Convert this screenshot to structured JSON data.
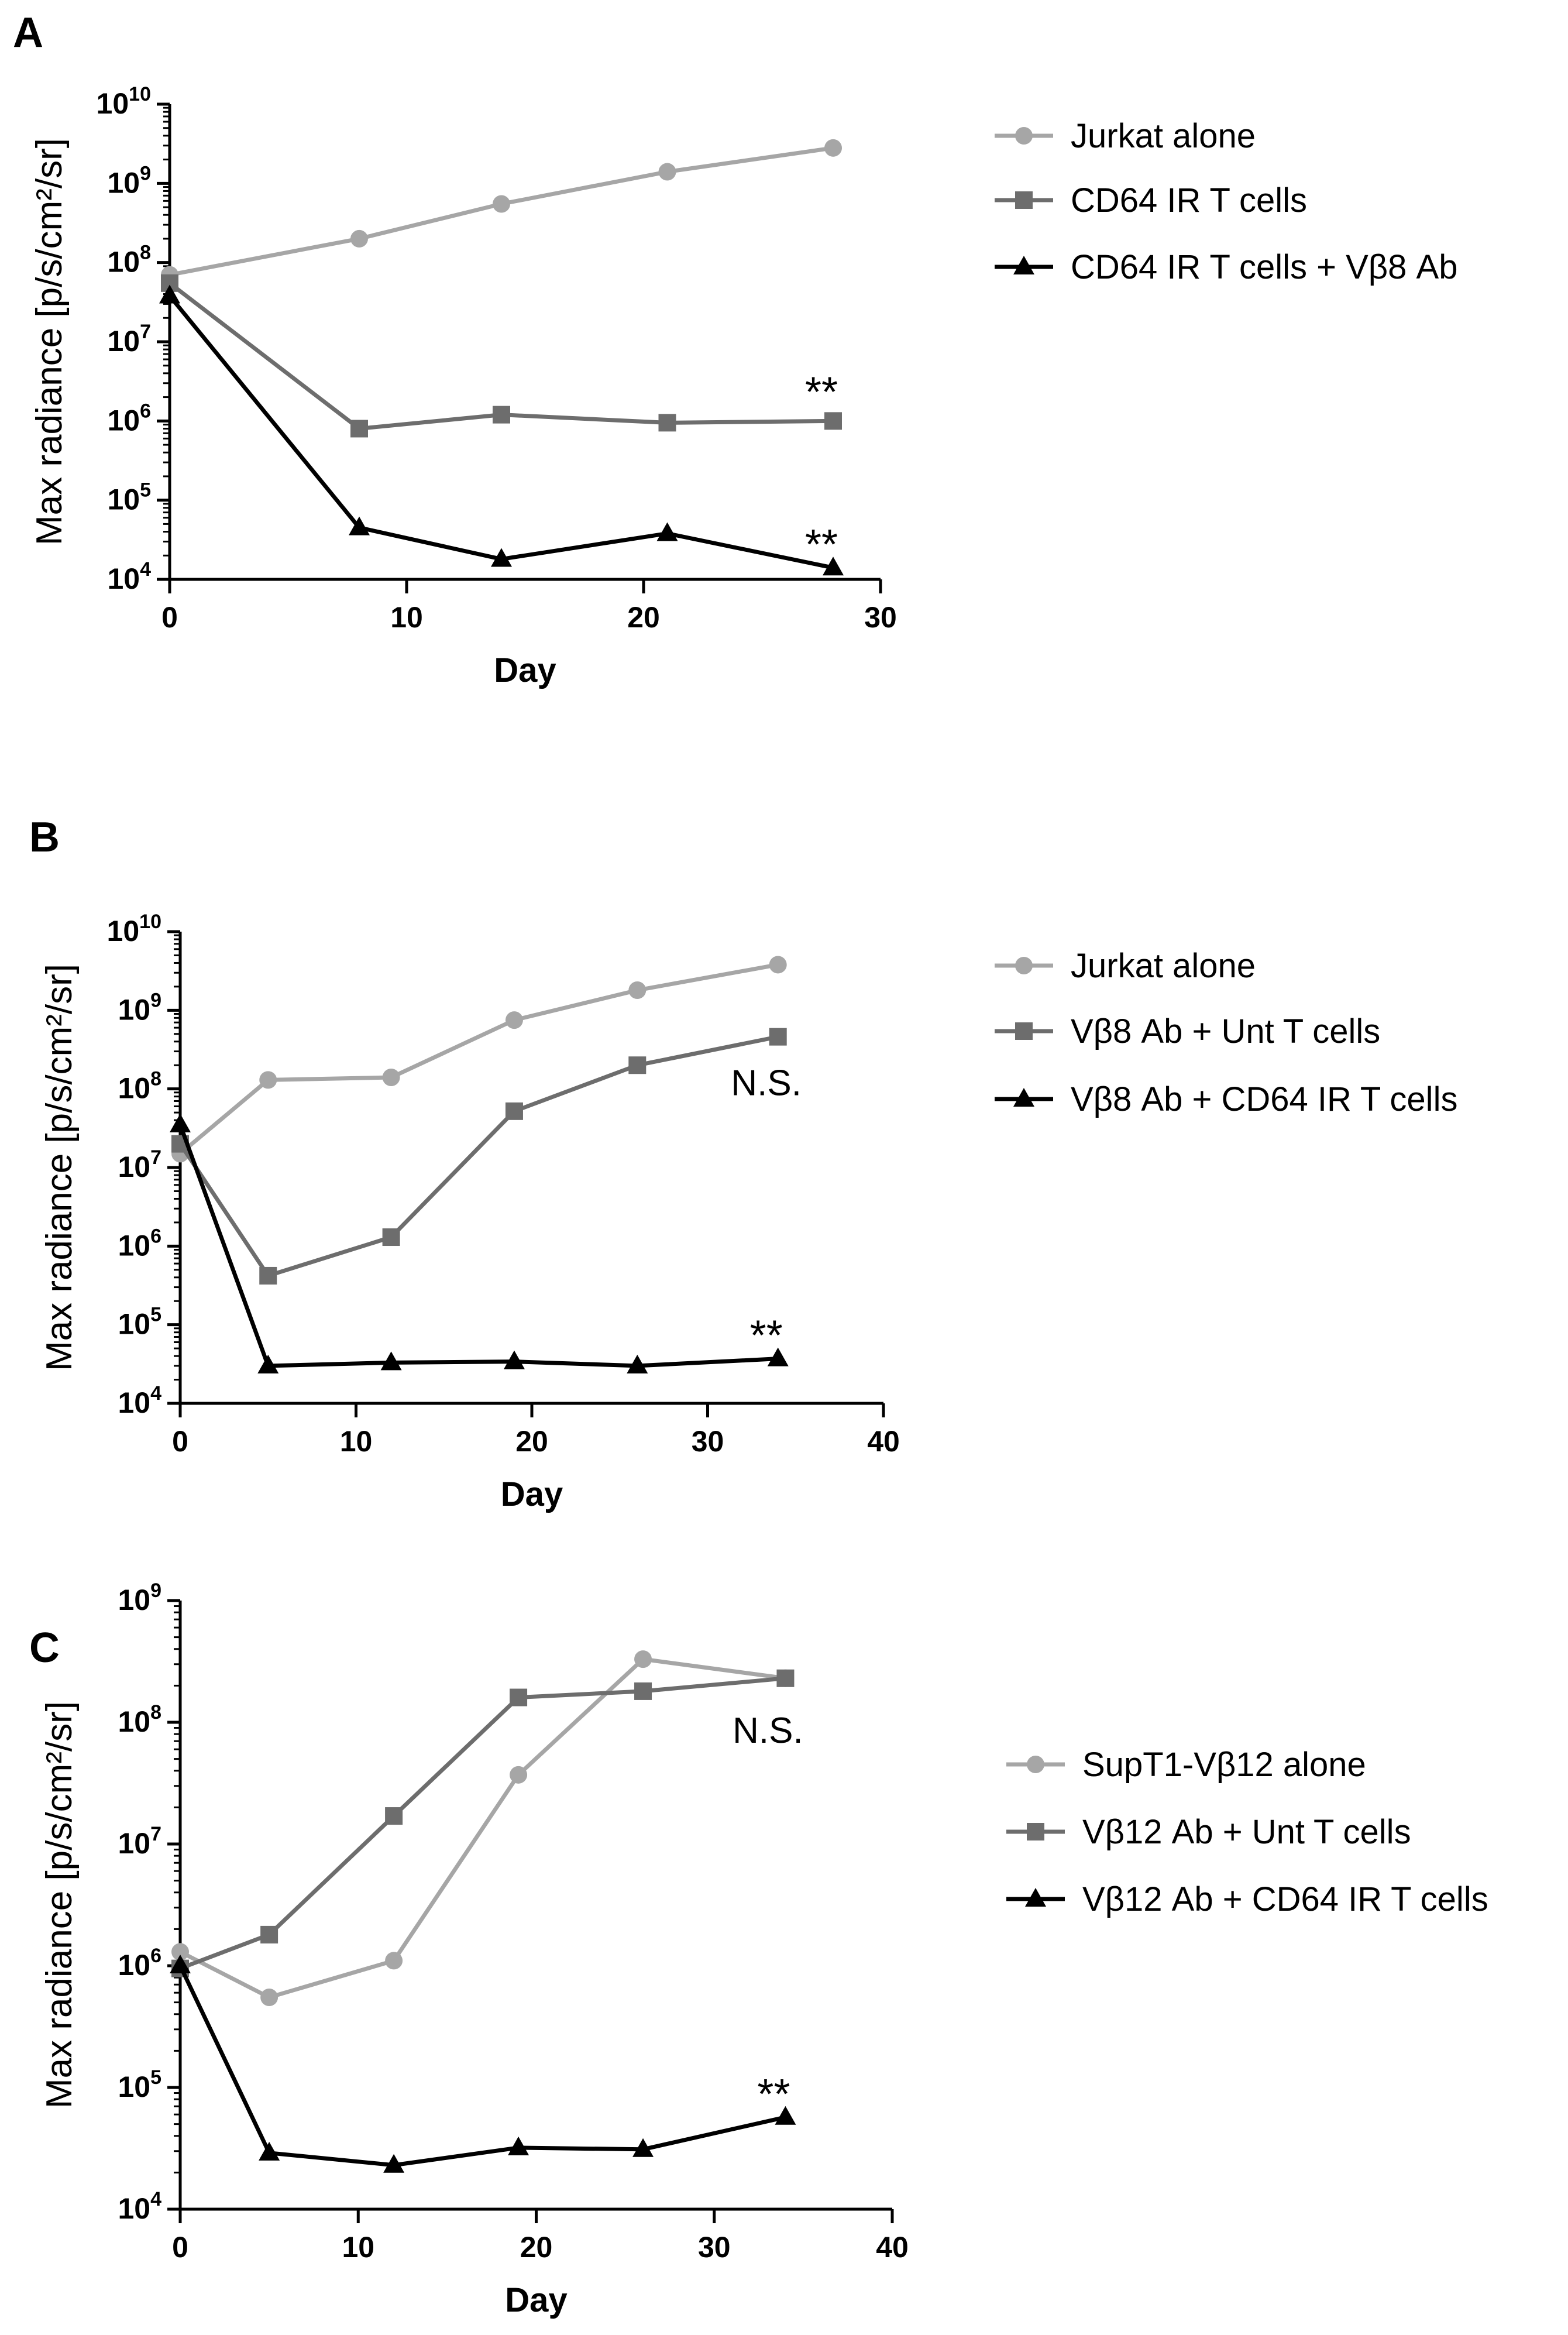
{
  "figure": {
    "colors": {
      "light": "#a6a6a6",
      "mid": "#6d6d6d",
      "dark": "#000000",
      "axis": "#000000"
    },
    "panels": [
      {
        "label": "A",
        "chart_data": {
          "type": "line",
          "title": "",
          "xlabel": "Day",
          "ylabel": "Max radiance [p/s/cm²/sr]",
          "xlim": [
            0,
            30
          ],
          "ylim_log10": [
            4,
            10
          ],
          "xticks": [
            0,
            10,
            20,
            30
          ],
          "yticks": [
            "10^4",
            "10^5",
            "10^6",
            "10^7",
            "10^8",
            "10^9",
            "10^10"
          ],
          "series": [
            {
              "name": "Jurkat alone",
              "marker": "circle",
              "color": "light",
              "x": [
                0,
                8,
                14,
                21,
                28
              ],
              "y": [
                70000000,
                200000000,
                550000000,
                1400000000,
                2800000000
              ]
            },
            {
              "name": "CD64 IR T cells",
              "marker": "square",
              "color": "mid",
              "x": [
                0,
                8,
                14,
                21,
                28
              ],
              "y": [
                55000000,
                800000,
                1200000,
                950000,
                1000000
              ]
            },
            {
              "name": "CD64 IR T cells + Vβ8 Ab",
              "marker": "triangle",
              "color": "dark",
              "x": [
                0,
                8,
                14,
                21,
                28
              ],
              "y": [
                38000000,
                45000,
                18000,
                38000,
                14000
              ]
            }
          ],
          "annotations": [
            {
              "text": "**",
              "series": 1
            },
            {
              "text": "**",
              "series": 2
            }
          ]
        }
      },
      {
        "label": "B",
        "chart_data": {
          "type": "line",
          "title": "",
          "xlabel": "Day",
          "ylabel": "Max radiance [p/s/cm²/sr]",
          "xlim": [
            0,
            40
          ],
          "ylim_log10": [
            4,
            10
          ],
          "xticks": [
            0,
            10,
            20,
            30,
            40
          ],
          "yticks": [
            "10^4",
            "10^5",
            "10^6",
            "10^7",
            "10^8",
            "10^9",
            "10^10"
          ],
          "series": [
            {
              "name": "Jurkat alone",
              "marker": "circle",
              "color": "light",
              "x": [
                0,
                5,
                12,
                19,
                26,
                34
              ],
              "y": [
                15000000,
                130000000,
                140000000,
                750000000,
                1800000000,
                3800000000
              ]
            },
            {
              "name": "Vβ8 Ab + Unt T cells",
              "marker": "square",
              "color": "mid",
              "x": [
                0,
                5,
                12,
                19,
                26,
                34
              ],
              "y": [
                20000000,
                420000,
                1300000,
                52000000,
                200000000,
                460000000
              ]
            },
            {
              "name": "Vβ8 Ab + CD64 IR T cells",
              "marker": "triangle",
              "color": "dark",
              "x": [
                0,
                5,
                12,
                19,
                26,
                34
              ],
              "y": [
                35000000,
                30000,
                33000,
                34000,
                30000,
                37000
              ]
            }
          ],
          "annotations": [
            {
              "text": "N.S.",
              "series": 1
            },
            {
              "text": "**",
              "series": 2
            }
          ]
        }
      },
      {
        "label": "C",
        "chart_data": {
          "type": "line",
          "title": "",
          "xlabel": "Day",
          "ylabel": "Max radiance [p/s/cm²/sr]",
          "xlim": [
            0,
            40
          ],
          "ylim_log10": [
            4,
            9
          ],
          "xticks": [
            0,
            10,
            20,
            30,
            40
          ],
          "yticks": [
            "10^4",
            "10^5",
            "10^6",
            "10^7",
            "10^8",
            "10^9"
          ],
          "series": [
            {
              "name": "SupT1-Vβ12 alone",
              "marker": "circle",
              "color": "light",
              "x": [
                0,
                5,
                12,
                19,
                26,
                34
              ],
              "y": [
                1300000,
                550000,
                1100000,
                37000000,
                330000000,
                230000000
              ]
            },
            {
              "name": "Vβ12 Ab + Unt T cells",
              "marker": "square",
              "color": "mid",
              "x": [
                0,
                5,
                12,
                19,
                26,
                34
              ],
              "y": [
                950000,
                1800000,
                17000000,
                160000000,
                180000000,
                230000000
              ]
            },
            {
              "name": "Vβ12 Ab + CD64 IR T cells",
              "marker": "triangle",
              "color": "dark",
              "x": [
                0,
                5,
                12,
                19,
                26,
                34
              ],
              "y": [
                1000000,
                29000,
                23000,
                32000,
                31000,
                57000
              ]
            }
          ],
          "annotations": [
            {
              "text": "N.S.",
              "series": 1
            },
            {
              "text": "**",
              "series": 2
            }
          ]
        }
      }
    ]
  }
}
